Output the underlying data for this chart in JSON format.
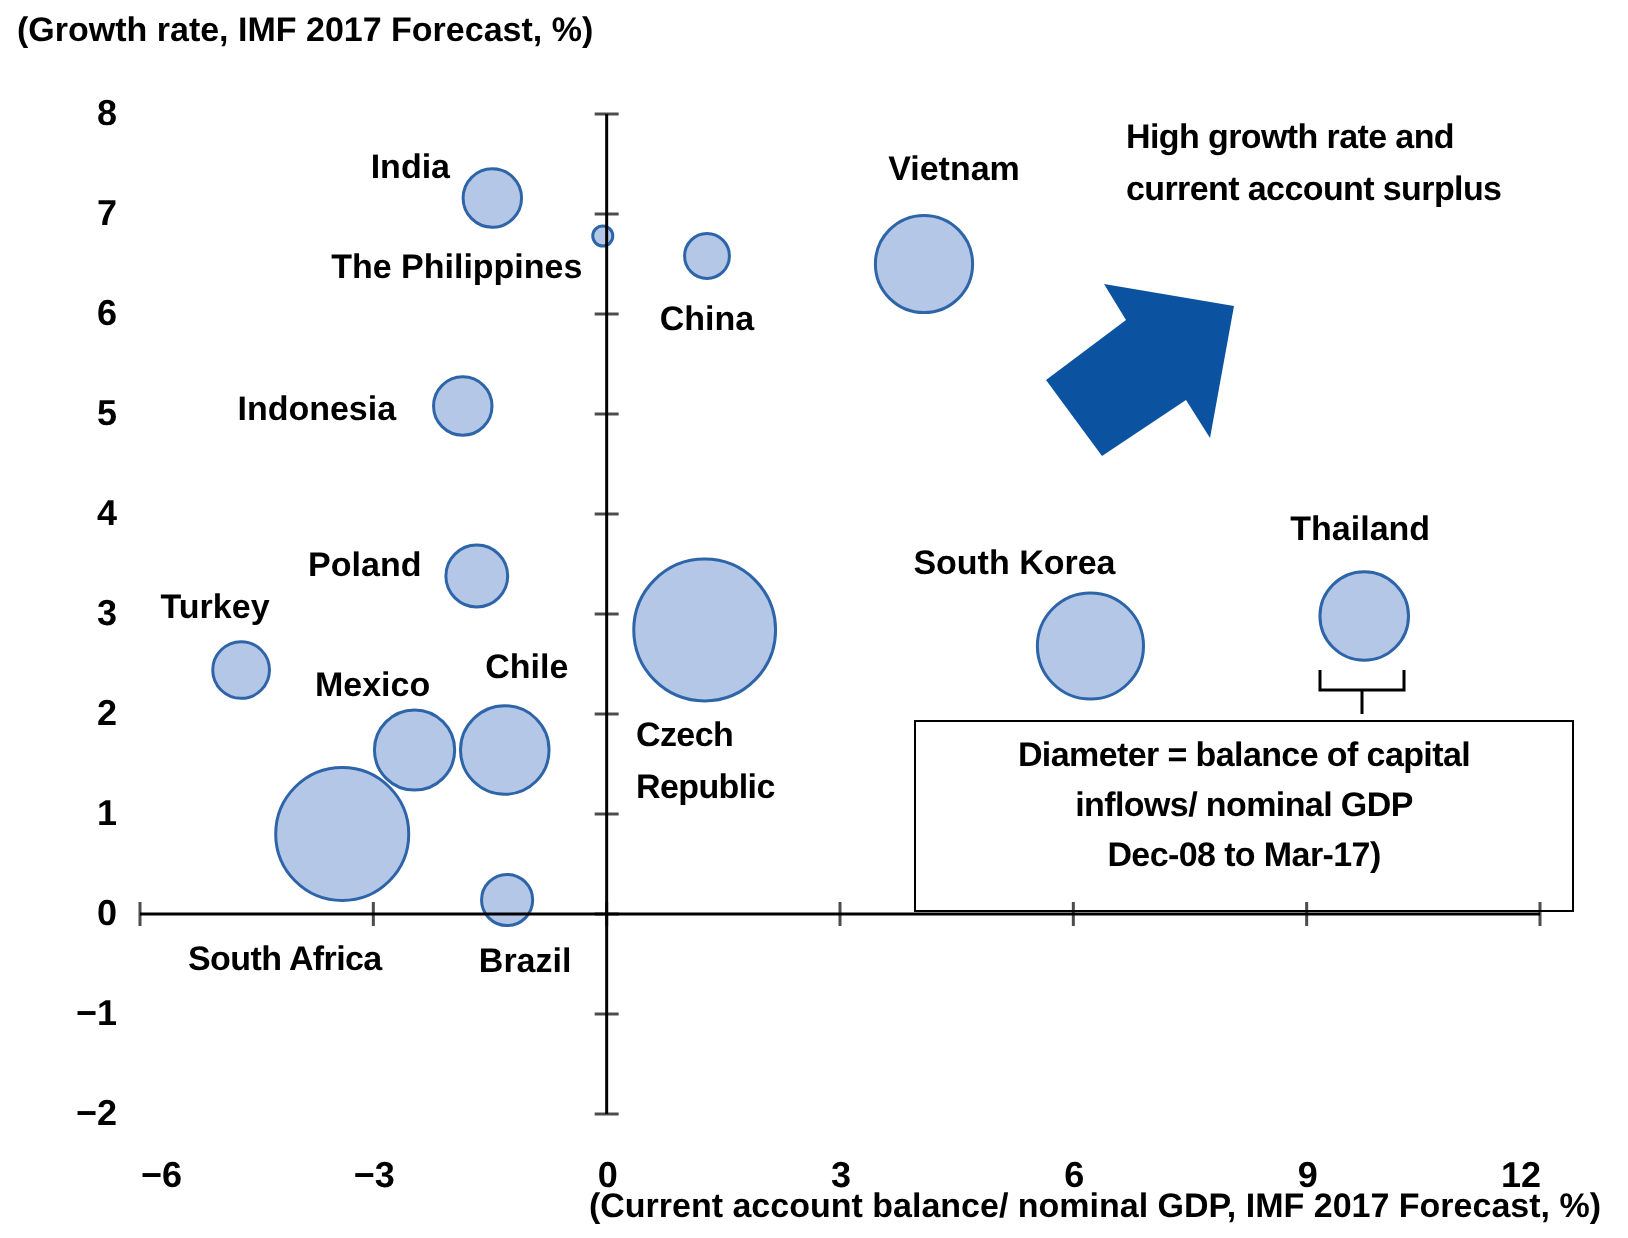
{
  "chart_data": {
    "type": "bubble",
    "xlabel": "(Current account balance/ nominal GDP, IMF 2017 Forecast, %)",
    "ylabel": "(Growth rate, IMF 2017 Forecast, %)",
    "x": [
      -1.47,
      -0.05,
      1.29,
      -1.85,
      -1.67,
      -4.7,
      -2.47,
      -1.31,
      1.26,
      -3.4,
      -1.28,
      4.08,
      6.22,
      9.74
    ],
    "values": [
      7.16,
      6.78,
      6.58,
      5.08,
      3.38,
      2.44,
      1.64,
      1.64,
      2.84,
      0.8,
      0.14,
      6.5,
      2.68,
      2.98
    ],
    "sizes": [
      0.17,
      0.02,
      0.1,
      0.17,
      0.19,
      0.16,
      0.32,
      0.39,
      1,
      0.88,
      0.13,
      0.47,
      0.56,
      0.39
    ],
    "color": "#b4c7e7",
    "xlim": [
      -6,
      12
    ],
    "ylim": [
      -2,
      8
    ],
    "xticks": [
      -6,
      -3,
      0,
      3,
      6,
      9,
      12
    ],
    "yticks": [
      -2,
      -1,
      0,
      1,
      2,
      3,
      4,
      5,
      6,
      7,
      8
    ],
    "annotations": [
      {
        "text": "India",
        "x": -1.47,
        "y": 7.16
      },
      {
        "text": "The Philippines",
        "x": -0.05,
        "y": 6.78
      },
      {
        "text": "China",
        "x": 1.29,
        "y": 6.58
      },
      {
        "text": "Indonesia",
        "x": -1.85,
        "y": 5.08
      },
      {
        "text": "Poland",
        "x": -1.67,
        "y": 3.38
      },
      {
        "text": "Turkey",
        "x": -4.7,
        "y": 2.44
      },
      {
        "text": "Mexico",
        "x": -2.47,
        "y": 1.64
      },
      {
        "text": "Chile",
        "x": -1.31,
        "y": 1.64
      },
      "Czech Republic",
      "South Africa",
      {
        "text": "Brazil",
        "x": -1.28,
        "y": 0.14
      },
      {
        "text": "Vietnam",
        "x": 4.08,
        "y": 6.5
      },
      {
        "text": "South Korea",
        "x": 6.22,
        "y": 2.68
      },
      {
        "text": "Thailand",
        "x": 9.74,
        "y": 2.98
      },
      "High growth rate and current account surplus",
      "Diameter = balance of capital\ninflows/ nominal GDP\nDec-08 to Mar-17)"
    ]
  }
}
